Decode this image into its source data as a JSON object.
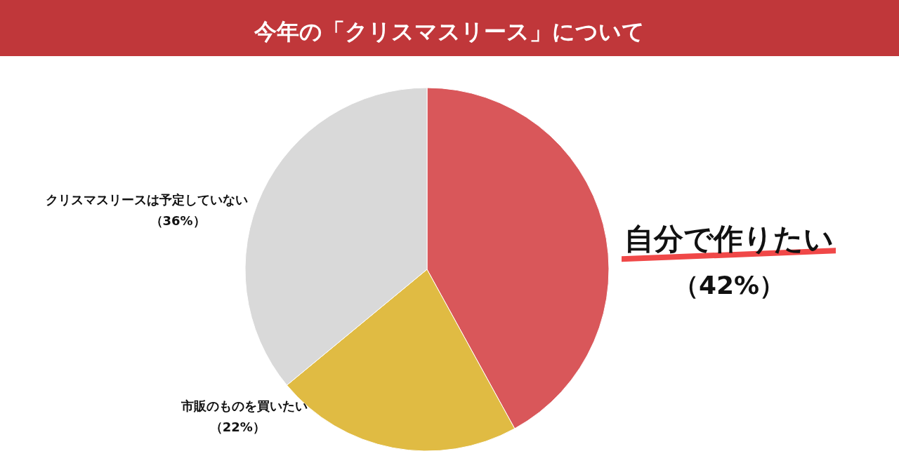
{
  "chart_data": {
    "type": "pie",
    "title": "今年の「クリスマスリース」について",
    "categories": [
      "自分で作りたい",
      "市販のものを買いたい",
      "クリスマスリースは予定していない"
    ],
    "values": [
      42,
      22,
      36
    ],
    "value_labels": [
      "（42%）",
      "（22%）",
      "（36%）"
    ],
    "colors": [
      "#d9575a",
      "#e0bb43",
      "#d9d9d9"
    ]
  }
}
